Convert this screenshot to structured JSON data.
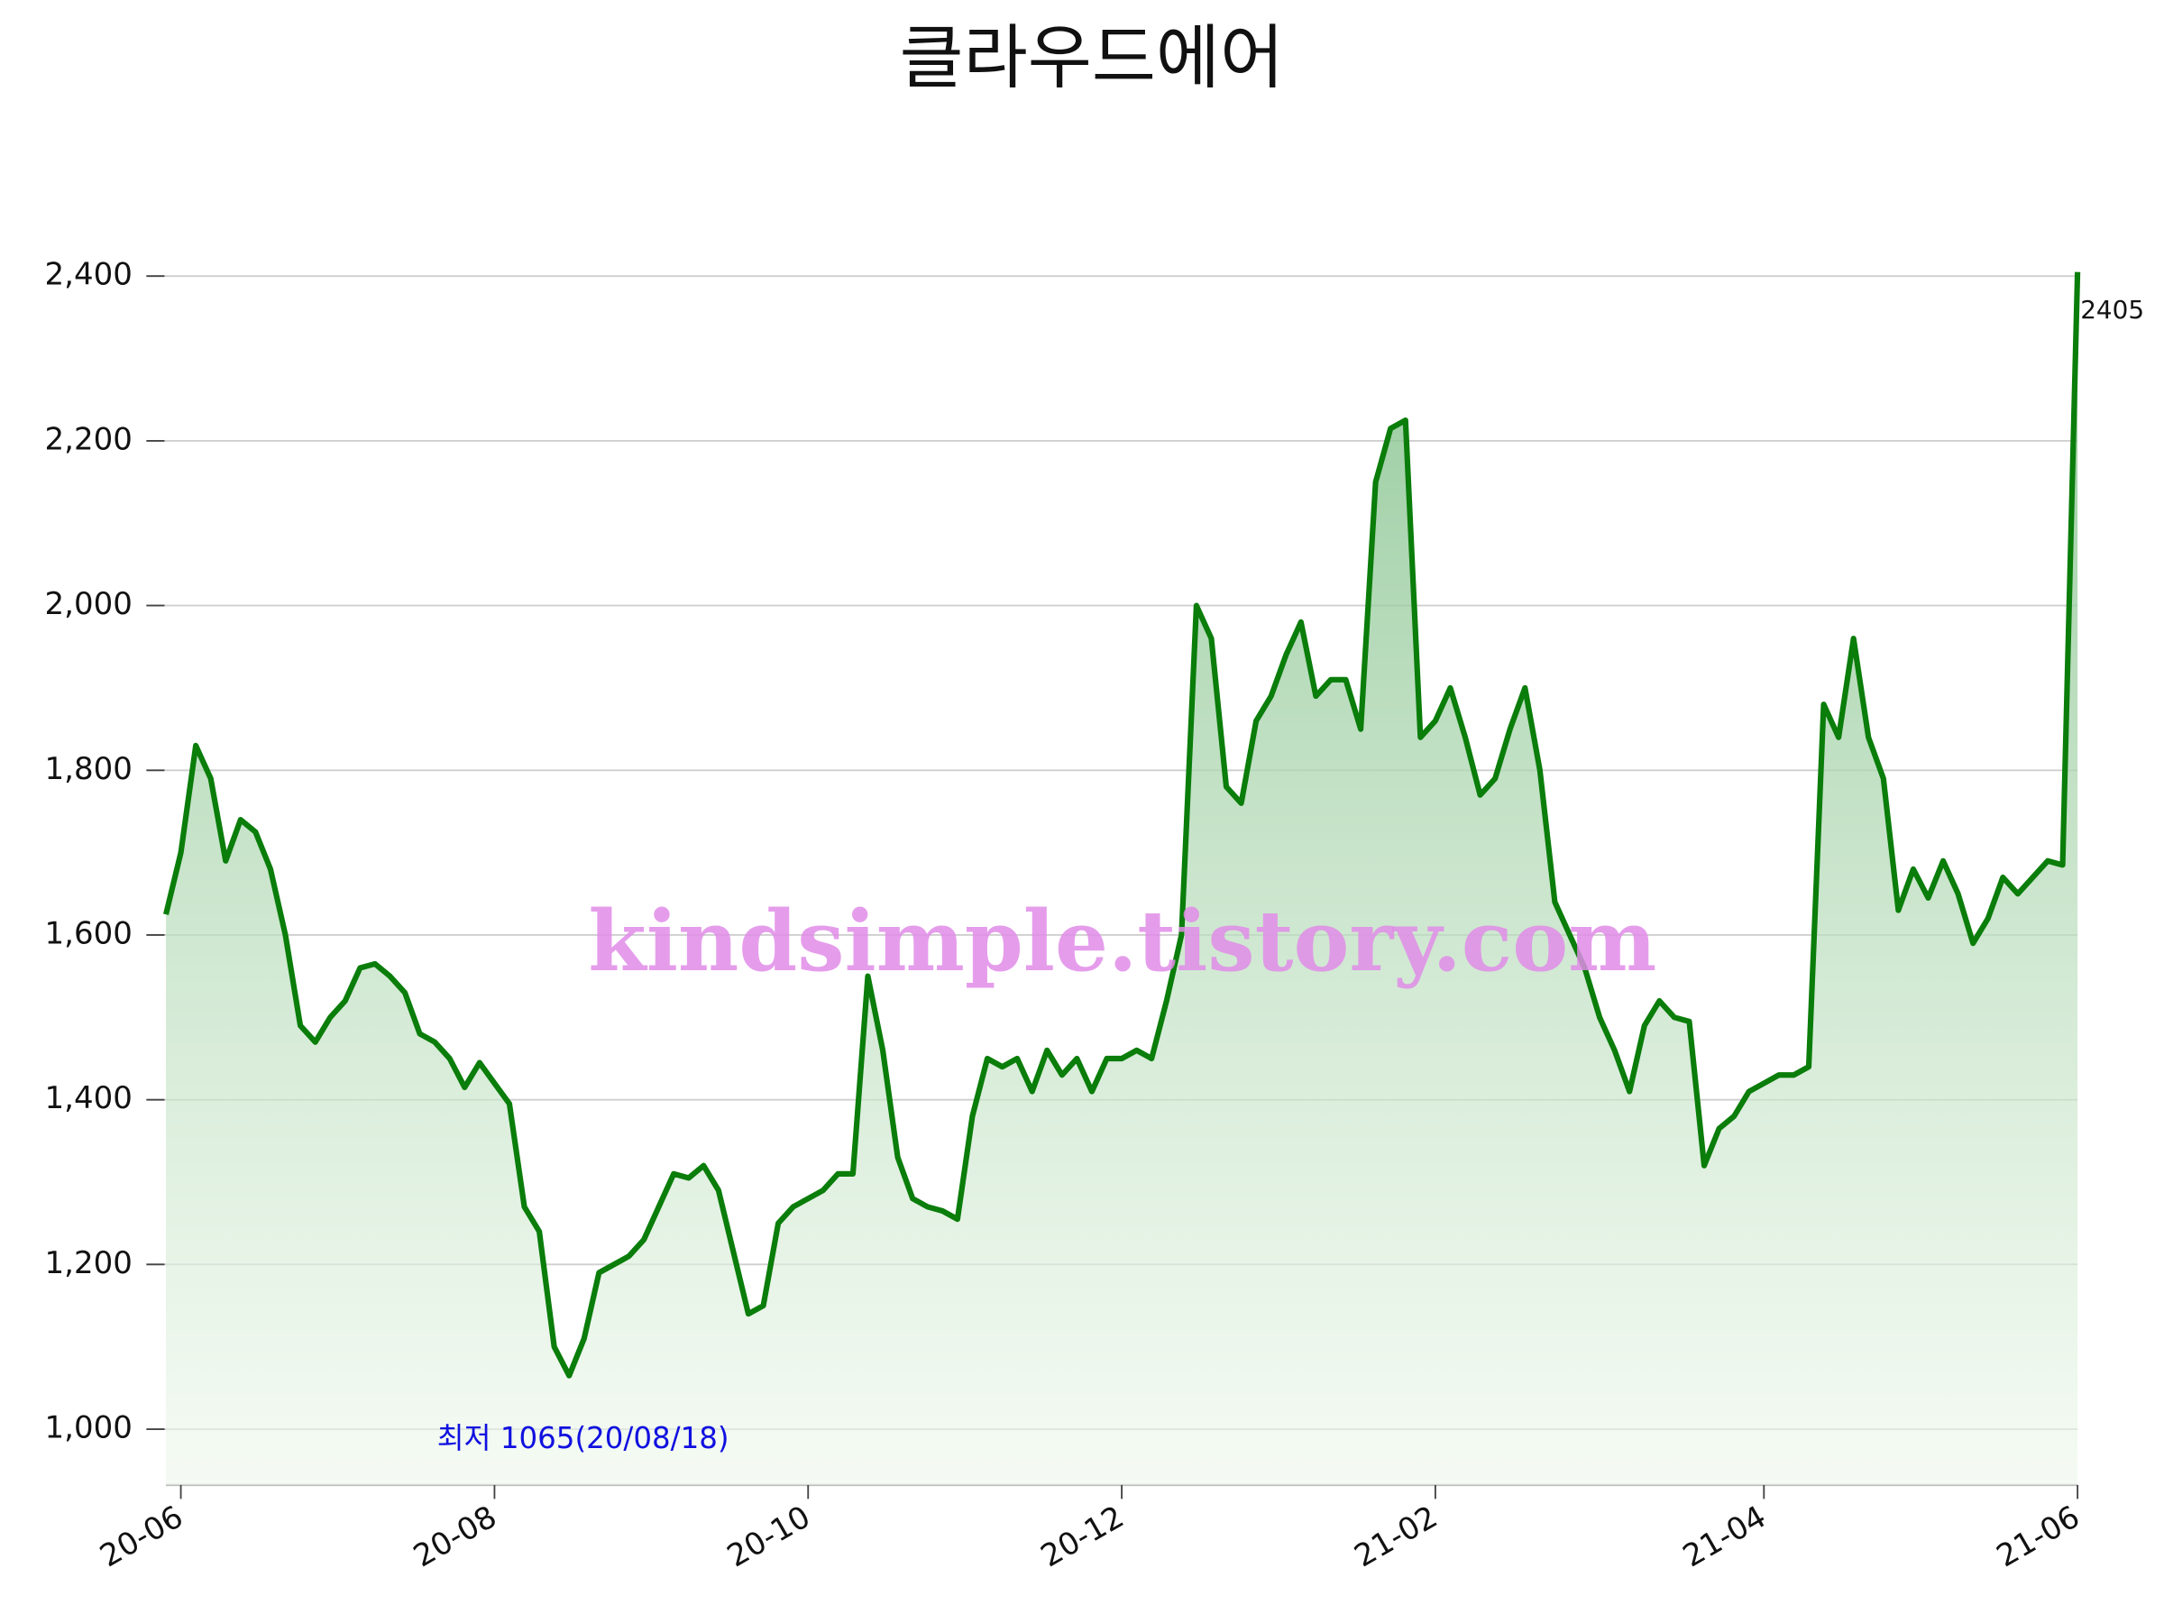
{
  "chart_data": {
    "type": "area",
    "title": "클라우드에어",
    "watermark": "kindsimple.tistory.com",
    "annotations": [
      {
        "text": "최저 1065(20/08/18)",
        "index": 27
      }
    ],
    "last_label": true,
    "color": "#0a7d0a",
    "grid": true,
    "categories": [
      null,
      "20-06",
      null,
      null,
      null,
      null,
      null,
      null,
      null,
      null,
      null,
      null,
      null,
      null,
      null,
      null,
      null,
      null,
      null,
      null,
      null,
      null,
      "20-08",
      null,
      null,
      null,
      null,
      null,
      null,
      null,
      null,
      null,
      null,
      null,
      null,
      null,
      null,
      null,
      null,
      null,
      null,
      null,
      null,
      "20-10",
      null,
      null,
      null,
      null,
      null,
      null,
      null,
      null,
      null,
      null,
      null,
      null,
      null,
      null,
      null,
      null,
      null,
      null,
      null,
      null,
      "20-12",
      null,
      null,
      null,
      null,
      null,
      null,
      null,
      null,
      null,
      null,
      null,
      null,
      null,
      null,
      null,
      null,
      null,
      null,
      null,
      null,
      "21-02",
      null,
      null,
      null,
      null,
      null,
      null,
      null,
      null,
      null,
      null,
      null,
      null,
      null,
      null,
      null,
      null,
      null,
      null,
      null,
      null,
      null,
      "21-04",
      null,
      null,
      null,
      null,
      null,
      null,
      null,
      null,
      null,
      null,
      null,
      null,
      null,
      null,
      null,
      null,
      null,
      null,
      null,
      null,
      "21-06"
    ],
    "values": [
      1625,
      1700,
      1830,
      1790,
      1690,
      1740,
      1725,
      1680,
      1600,
      1490,
      1470,
      1500,
      1520,
      1560,
      1565,
      1550,
      1530,
      1480,
      1470,
      1450,
      1415,
      1445,
      1420,
      1395,
      1270,
      1240,
      1100,
      1065,
      1110,
      1190,
      1200,
      1210,
      1230,
      1270,
      1310,
      1305,
      1320,
      1290,
      1215,
      1140,
      1150,
      1250,
      1270,
      1280,
      1290,
      1310,
      1310,
      1550,
      1460,
      1330,
      1280,
      1270,
      1265,
      1255,
      1380,
      1450,
      1440,
      1450,
      1410,
      1460,
      1430,
      1450,
      1410,
      1450,
      1450,
      1460,
      1450,
      1520,
      1600,
      2000,
      1960,
      1780,
      1760,
      1860,
      1890,
      1940,
      1980,
      1890,
      1910,
      1910,
      1850,
      2150,
      2215,
      2225,
      1840,
      1860,
      1900,
      1840,
      1770,
      1790,
      1850,
      1900,
      1800,
      1640,
      1600,
      1560,
      1500,
      1460,
      1410,
      1490,
      1520,
      1500,
      1495,
      1320,
      1365,
      1380,
      1410,
      1420,
      1430,
      1430,
      1440,
      1880,
      1840,
      1960,
      1840,
      1790,
      1630,
      1680,
      1645,
      1690,
      1650,
      1590,
      1620,
      1670,
      1650,
      1670,
      1690,
      1685,
      2405
    ],
    "ylim": [
      932,
      2480
    ],
    "yticks": [
      {
        "value": 1000,
        "label": "1,000"
      },
      {
        "value": 1200,
        "label": "1,200"
      },
      {
        "value": 1400,
        "label": "1,400"
      },
      {
        "value": 1600,
        "label": "1,600"
      },
      {
        "value": 1800,
        "label": "1,800"
      },
      {
        "value": 2000,
        "label": "2,000"
      },
      {
        "value": 2200,
        "label": "2,200"
      },
      {
        "value": 2400,
        "label": "2,400"
      }
    ]
  }
}
